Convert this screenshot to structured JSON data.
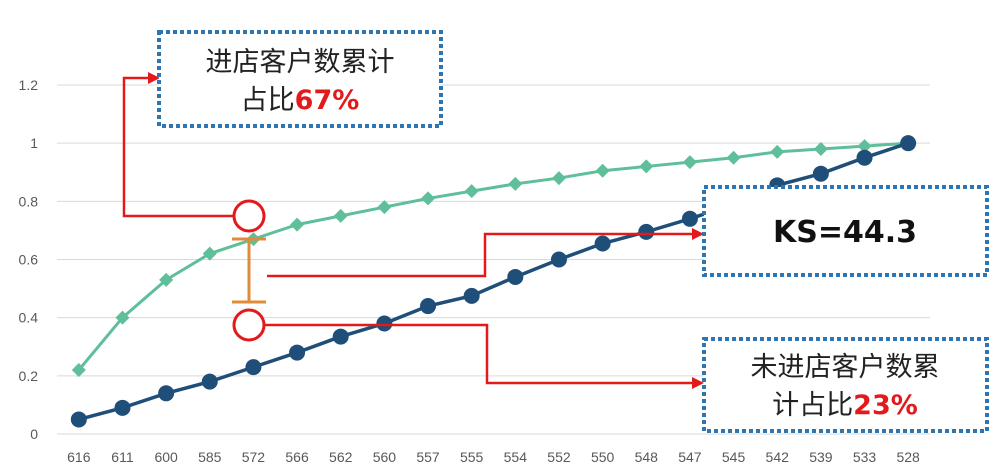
{
  "chart_data": {
    "type": "line",
    "categories": [
      "616",
      "611",
      "600",
      "585",
      "572",
      "566",
      "562",
      "560",
      "557",
      "555",
      "554",
      "552",
      "550",
      "548",
      "547",
      "545",
      "542",
      "539",
      "533",
      "528"
    ],
    "series": [
      {
        "values": [
          0.22,
          0.4,
          0.53,
          0.62,
          0.67,
          0.72,
          0.75,
          0.78,
          0.81,
          0.835,
          0.86,
          0.88,
          0.905,
          0.92,
          0.935,
          0.95,
          0.97,
          0.98,
          0.99,
          1.0
        ],
        "color": "#5fbf9a",
        "marker": "diamond"
      },
      {
        "values": [
          0.05,
          0.09,
          0.14,
          0.18,
          0.23,
          0.28,
          0.335,
          0.38,
          0.44,
          0.475,
          0.54,
          0.6,
          0.655,
          0.695,
          0.74,
          0.79,
          0.855,
          0.895,
          0.95,
          1.0
        ],
        "color": "#1f4e79",
        "marker": "circle"
      }
    ],
    "y_ticks": [
      "0",
      "0.2",
      "0.4",
      "0.6",
      "0.8",
      "1",
      "1.2"
    ],
    "ylim": [
      0,
      1.2
    ],
    "grid": true
  },
  "annotations": {
    "entered": {
      "line1": "进店客户数累计",
      "line2_prefix": "占比",
      "pct": "67%"
    },
    "not_entered": {
      "line1": "未进店客户数累",
      "line2_prefix": "计占比",
      "pct": "23%"
    },
    "ks": "KS=44.3",
    "colors": {
      "arrow": "#e31a1c",
      "gap": "#e08b3a",
      "box_border": "#2e75b6"
    }
  }
}
